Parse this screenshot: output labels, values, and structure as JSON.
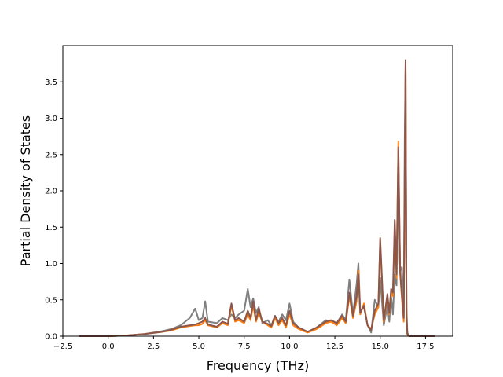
{
  "chart_data": {
    "type": "line",
    "title": "",
    "xlabel": "Frequency (THz)",
    "ylabel": "Partial Density of States",
    "xlim": [
      -2.5,
      19.0
    ],
    "ylim": [
      0.0,
      4.0
    ],
    "xticks": [
      -2.5,
      0.0,
      2.5,
      5.0,
      7.5,
      10.0,
      12.5,
      15.0,
      17.5
    ],
    "xtick_labels": [
      "−2.5",
      "0.0",
      "2.5",
      "5.0",
      "7.5",
      "10.0",
      "12.5",
      "15.0",
      "17.5"
    ],
    "yticks": [
      0.0,
      0.5,
      1.0,
      1.5,
      2.0,
      2.5,
      3.0,
      3.5
    ],
    "ytick_labels": [
      "0.0",
      "0.5",
      "1.0",
      "1.5",
      "2.0",
      "2.5",
      "3.0",
      "3.5"
    ],
    "grid": false,
    "legend": "none",
    "series": [
      {
        "color": "#7f7f7f",
        "x": [
          -1.6,
          0.0,
          1.0,
          2.0,
          3.0,
          3.5,
          4.0,
          4.5,
          4.8,
          5.0,
          5.2,
          5.35,
          5.5,
          6.0,
          6.3,
          6.6,
          6.8,
          7.0,
          7.2,
          7.5,
          7.7,
          7.85,
          8.0,
          8.15,
          8.3,
          8.5,
          8.8,
          9.0,
          9.2,
          9.4,
          9.6,
          9.8,
          10.0,
          10.2,
          10.5,
          11.0,
          11.5,
          12.0,
          12.3,
          12.6,
          12.9,
          13.1,
          13.3,
          13.5,
          13.7,
          13.8,
          13.9,
          14.1,
          14.3,
          14.5,
          14.7,
          14.9,
          15.0,
          15.2,
          15.4,
          15.5,
          15.6,
          15.7,
          15.8,
          15.9,
          16.0,
          16.1,
          16.2,
          16.3,
          16.35,
          16.4,
          16.45,
          16.5,
          16.6,
          17.0,
          18.0
        ],
        "y": [
          0.0,
          0.0,
          0.01,
          0.03,
          0.07,
          0.1,
          0.15,
          0.25,
          0.38,
          0.22,
          0.25,
          0.48,
          0.2,
          0.18,
          0.25,
          0.22,
          0.3,
          0.25,
          0.3,
          0.35,
          0.65,
          0.4,
          0.52,
          0.32,
          0.4,
          0.18,
          0.22,
          0.15,
          0.28,
          0.2,
          0.3,
          0.22,
          0.45,
          0.2,
          0.12,
          0.06,
          0.12,
          0.22,
          0.2,
          0.18,
          0.3,
          0.22,
          0.78,
          0.3,
          0.72,
          1.0,
          0.35,
          0.4,
          0.15,
          0.05,
          0.5,
          0.4,
          0.8,
          0.15,
          0.42,
          0.2,
          0.55,
          0.3,
          0.85,
          0.7,
          2.35,
          0.9,
          0.95,
          0.3,
          2.7,
          3.78,
          0.4,
          0.05,
          0.0,
          0.0,
          0.0
        ]
      },
      {
        "color": "#ff7f0e",
        "x": [
          -1.6,
          0.0,
          1.0,
          2.0,
          3.0,
          3.5,
          4.0,
          4.5,
          4.8,
          5.0,
          5.2,
          5.35,
          5.5,
          6.0,
          6.3,
          6.6,
          6.8,
          7.0,
          7.2,
          7.5,
          7.7,
          7.85,
          8.0,
          8.15,
          8.3,
          8.5,
          8.8,
          9.0,
          9.2,
          9.4,
          9.6,
          9.8,
          10.0,
          10.2,
          10.5,
          11.0,
          11.5,
          12.0,
          12.3,
          12.6,
          12.9,
          13.1,
          13.3,
          13.5,
          13.7,
          13.8,
          13.9,
          14.1,
          14.3,
          14.5,
          14.7,
          14.9,
          15.0,
          15.2,
          15.4,
          15.5,
          15.6,
          15.7,
          15.8,
          15.9,
          16.0,
          16.1,
          16.2,
          16.3,
          16.35,
          16.4,
          16.45,
          16.5,
          16.6,
          17.0,
          18.0
        ],
        "y": [
          0.0,
          0.0,
          0.01,
          0.03,
          0.06,
          0.08,
          0.12,
          0.14,
          0.15,
          0.15,
          0.17,
          0.22,
          0.15,
          0.12,
          0.18,
          0.15,
          0.42,
          0.2,
          0.22,
          0.18,
          0.3,
          0.22,
          0.42,
          0.2,
          0.32,
          0.2,
          0.15,
          0.12,
          0.25,
          0.15,
          0.22,
          0.12,
          0.3,
          0.15,
          0.1,
          0.05,
          0.1,
          0.18,
          0.2,
          0.15,
          0.25,
          0.18,
          0.55,
          0.25,
          0.48,
          0.9,
          0.3,
          0.45,
          0.15,
          0.1,
          0.3,
          0.4,
          1.3,
          0.2,
          0.55,
          0.3,
          0.6,
          0.55,
          1.5,
          0.8,
          2.68,
          0.85,
          0.5,
          0.2,
          2.0,
          3.7,
          0.2,
          0.02,
          0.0,
          0.0,
          0.0
        ]
      },
      {
        "color": "#8c564b",
        "x": [
          -1.6,
          0.0,
          1.0,
          2.0,
          3.0,
          3.5,
          4.0,
          4.5,
          4.8,
          5.0,
          5.2,
          5.35,
          5.5,
          6.0,
          6.3,
          6.6,
          6.8,
          7.0,
          7.2,
          7.5,
          7.7,
          7.85,
          8.0,
          8.15,
          8.3,
          8.5,
          8.8,
          9.0,
          9.2,
          9.4,
          9.6,
          9.8,
          10.0,
          10.2,
          10.5,
          11.0,
          11.5,
          12.0,
          12.3,
          12.6,
          12.9,
          13.1,
          13.3,
          13.5,
          13.7,
          13.8,
          13.9,
          14.1,
          14.3,
          14.5,
          14.7,
          14.9,
          15.0,
          15.2,
          15.4,
          15.5,
          15.6,
          15.7,
          15.8,
          15.9,
          16.0,
          16.1,
          16.2,
          16.3,
          16.35,
          16.4,
          16.45,
          16.5,
          16.6,
          17.0,
          18.0
        ],
        "y": [
          0.0,
          0.0,
          0.01,
          0.03,
          0.06,
          0.09,
          0.13,
          0.15,
          0.16,
          0.18,
          0.2,
          0.25,
          0.16,
          0.13,
          0.2,
          0.17,
          0.45,
          0.22,
          0.25,
          0.2,
          0.35,
          0.25,
          0.48,
          0.22,
          0.38,
          0.2,
          0.17,
          0.14,
          0.28,
          0.18,
          0.25,
          0.15,
          0.35,
          0.18,
          0.12,
          0.06,
          0.12,
          0.2,
          0.22,
          0.18,
          0.28,
          0.2,
          0.6,
          0.28,
          0.55,
          0.85,
          0.32,
          0.42,
          0.15,
          0.08,
          0.35,
          0.45,
          1.35,
          0.22,
          0.58,
          0.32,
          0.65,
          0.6,
          1.6,
          0.85,
          2.6,
          0.9,
          0.55,
          0.25,
          2.2,
          3.8,
          0.25,
          0.03,
          0.0,
          0.0,
          0.0
        ]
      }
    ]
  }
}
